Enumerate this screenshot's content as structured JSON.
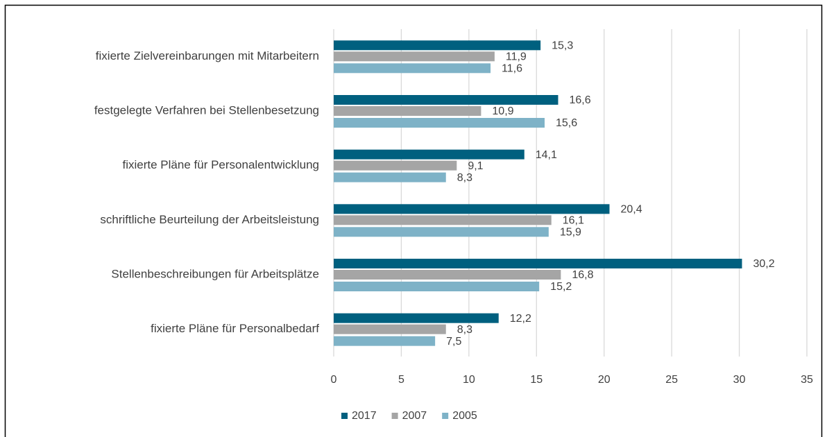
{
  "chart_data": {
    "type": "hbar",
    "categories": [
      "fixierte Zielvereinbarungen mit Mitarbeitern",
      "festgelegte Verfahren bei Stellenbesetzung",
      "fixierte Pläne für Personalentwicklung",
      "schriftliche Beurteilung der Arbeitsleistung",
      "Stellenbeschreibungen für Arbeitsplätze",
      "fixierte Pläne für Personalbedarf"
    ],
    "series": [
      {
        "name": "2017",
        "color": "#00607f",
        "values": [
          15.3,
          16.6,
          14.1,
          20.4,
          30.2,
          12.2
        ],
        "value_labels": [
          "15,3",
          "16,6",
          "14,1",
          "20,4",
          "30,2",
          "12,2"
        ]
      },
      {
        "name": "2007",
        "color": "#a5a5a5",
        "values": [
          11.9,
          10.9,
          9.1,
          16.1,
          16.8,
          8.3
        ],
        "value_labels": [
          "11,9",
          "10,9",
          "9,1",
          "16,1",
          "16,8",
          "8,3"
        ]
      },
      {
        "name": "2005",
        "color": "#7eb2c7",
        "values": [
          11.6,
          15.6,
          8.3,
          15.9,
          15.2,
          7.5
        ],
        "value_labels": [
          "11,6",
          "15,6",
          "8,3",
          "15,9",
          "15,2",
          "7,5"
        ]
      }
    ],
    "xlim": [
      0,
      35
    ],
    "xticks": [
      0,
      5,
      10,
      15,
      20,
      25,
      30,
      35
    ],
    "grid": true,
    "legend": "bottom"
  }
}
